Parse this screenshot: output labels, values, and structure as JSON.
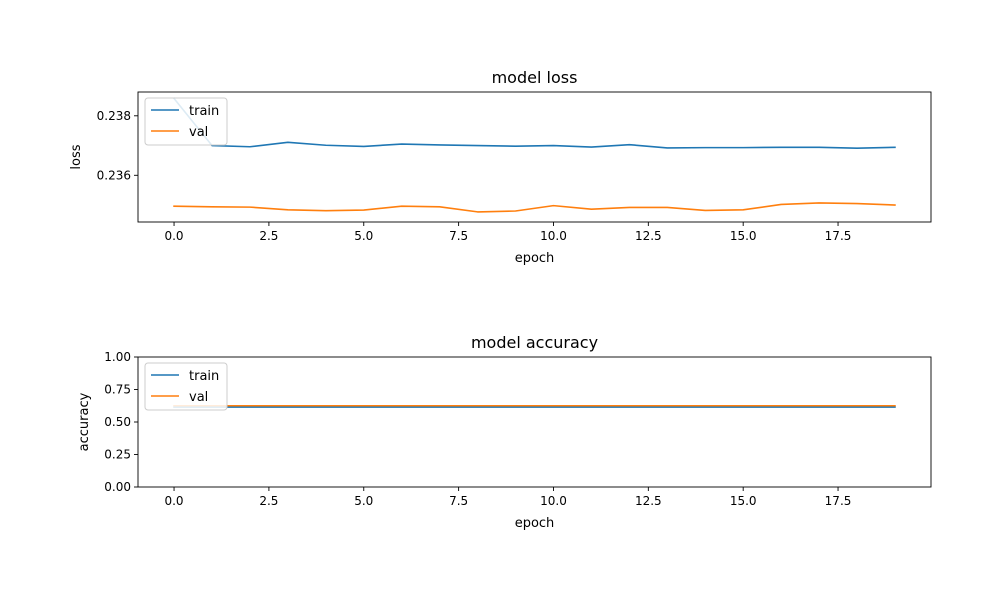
{
  "chart_data": [
    {
      "type": "line",
      "title": "model loss",
      "xlabel": "epoch",
      "ylabel": "loss",
      "xlim": [
        -0.95,
        19.95
      ],
      "ylim": [
        0.23443,
        0.2388
      ],
      "xticks": [
        0.0,
        2.5,
        5.0,
        7.5,
        10.0,
        12.5,
        15.0,
        17.5
      ],
      "xtick_labels": [
        "0.0",
        "2.5",
        "5.0",
        "7.5",
        "10.0",
        "12.5",
        "15.0",
        "17.5"
      ],
      "yticks": [
        0.236,
        0.238
      ],
      "ytick_labels": [
        "0.236",
        "0.238"
      ],
      "grid": false,
      "legend_position": "upper left",
      "x": [
        0,
        1,
        2,
        3,
        4,
        5,
        6,
        7,
        8,
        9,
        10,
        11,
        12,
        13,
        14,
        15,
        16,
        17,
        18,
        19
      ],
      "series": [
        {
          "name": "train",
          "color": "#1f77b4",
          "values": [
            0.23858,
            0.237,
            0.23696,
            0.23711,
            0.23701,
            0.23697,
            0.23705,
            0.23702,
            0.237,
            0.23698,
            0.237,
            0.23695,
            0.23703,
            0.23692,
            0.23693,
            0.23693,
            0.23694,
            0.23694,
            0.23691,
            0.23694
          ]
        },
        {
          "name": "val",
          "color": "#ff7f0e",
          "values": [
            0.23496,
            0.23494,
            0.23493,
            0.23484,
            0.23481,
            0.23483,
            0.23496,
            0.23494,
            0.23477,
            0.2348,
            0.23498,
            0.23486,
            0.23492,
            0.23492,
            0.23482,
            0.23484,
            0.23502,
            0.23507,
            0.23505,
            0.235
          ]
        }
      ]
    },
    {
      "type": "line",
      "title": "model accuracy",
      "xlabel": "epoch",
      "ylabel": "accuracy",
      "xlim": [
        -0.95,
        19.95
      ],
      "ylim": [
        0.0,
        1.0
      ],
      "xticks": [
        0.0,
        2.5,
        5.0,
        7.5,
        10.0,
        12.5,
        15.0,
        17.5
      ],
      "xtick_labels": [
        "0.0",
        "2.5",
        "5.0",
        "7.5",
        "10.0",
        "12.5",
        "15.0",
        "17.5"
      ],
      "yticks": [
        0.0,
        0.25,
        0.5,
        0.75,
        1.0
      ],
      "ytick_labels": [
        "0.00",
        "0.25",
        "0.50",
        "0.75",
        "1.00"
      ],
      "grid": false,
      "legend_position": "upper left",
      "x": [
        0,
        1,
        2,
        3,
        4,
        5,
        6,
        7,
        8,
        9,
        10,
        11,
        12,
        13,
        14,
        15,
        16,
        17,
        18,
        19
      ],
      "series": [
        {
          "name": "train",
          "color": "#1f77b4",
          "values": [
            0.615,
            0.615,
            0.615,
            0.615,
            0.615,
            0.615,
            0.615,
            0.615,
            0.615,
            0.615,
            0.615,
            0.615,
            0.615,
            0.615,
            0.615,
            0.615,
            0.615,
            0.615,
            0.615,
            0.615
          ]
        },
        {
          "name": "val",
          "color": "#ff7f0e",
          "values": [
            0.625,
            0.625,
            0.625,
            0.625,
            0.625,
            0.625,
            0.625,
            0.625,
            0.625,
            0.625,
            0.625,
            0.625,
            0.625,
            0.625,
            0.625,
            0.625,
            0.625,
            0.625,
            0.625,
            0.625
          ]
        }
      ]
    }
  ]
}
